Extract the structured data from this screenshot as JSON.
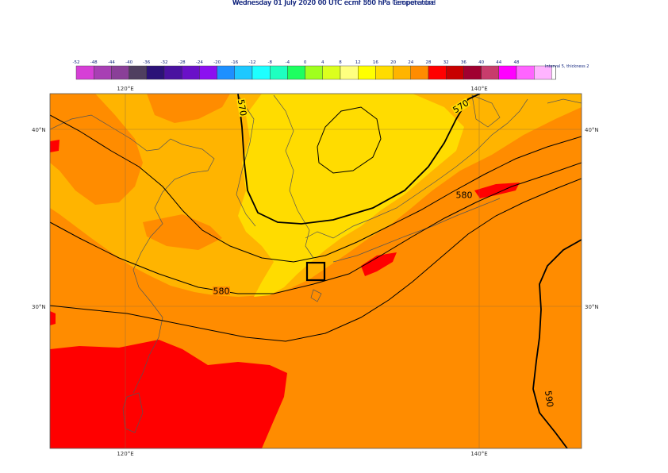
{
  "titles": {
    "line1": "Wednesday 01 July 2020 00 UTC ecmf 500 hPa  Geopotential",
    "line2": "Wednesday 01 July 2020 00 UTC ecmf 850 hPa  Temperature"
  },
  "legend": {
    "ticks": [
      "-52",
      "-48",
      "-44",
      "-40",
      "-36",
      "-32",
      "-28",
      "-24",
      "-20",
      "-16",
      "-12",
      "-8",
      "-4",
      "0",
      "4",
      "8",
      "12",
      "16",
      "20",
      "24",
      "28",
      "32",
      "36",
      "40",
      "44",
      "48"
    ],
    "colors": [
      "#d63fd6",
      "#a83fb4",
      "#8a3f98",
      "#4f3f60",
      "#2c1278",
      "#4a12a0",
      "#6a10c8",
      "#8c10f0",
      "#1e90ff",
      "#1ec8ff",
      "#1effff",
      "#1effc0",
      "#1eff60",
      "#a0ff1e",
      "#dcff1e",
      "#ffff80",
      "#ffff00",
      "#ffdc00",
      "#ffb400",
      "#ff8c00",
      "#ff0000",
      "#c80000",
      "#a00030",
      "#c83c6c",
      "#ff00ff",
      "#ff64ff",
      "#ffb4ff"
    ],
    "interval_note": "Interval 5, thickness 2"
  },
  "map": {
    "lat_labels": [
      "40°N",
      "30°N"
    ],
    "lon_labels": [
      "120°E",
      "140°E"
    ],
    "contour_labels": [
      "570",
      "570",
      "580",
      "580",
      "590"
    ]
  },
  "colors": {
    "base_orange": "#ff8c00",
    "light_orange": "#ffb400",
    "yellow": "#ffdc00",
    "hot_red": "#ff0000",
    "contour": "#000000",
    "coastline": "#555555",
    "grid": "#8a6a40"
  }
}
